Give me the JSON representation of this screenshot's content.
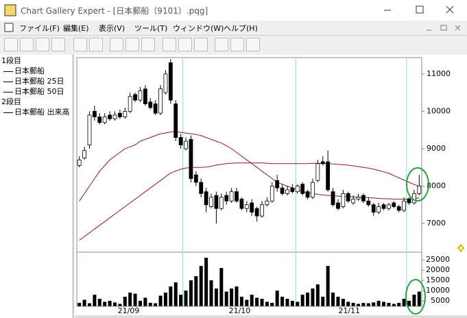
{
  "window": {
    "title": "Chart Gallery Expert - [日本郵船（9101）.pqg]"
  },
  "menu": [
    "ファイル(F)",
    "編集(E)",
    "表示(V)",
    "ツール(T)",
    "ウィンドウ(W)",
    "ヘルプ(H)"
  ],
  "chart_data": [
    {
      "type": "candlestick",
      "pane": "1段目",
      "name": "日本郵船",
      "open": [
        8550,
        8750,
        9100,
        10000,
        9850,
        9700,
        9900,
        9800,
        9950,
        9850,
        10000,
        10450,
        10300,
        10600,
        10250,
        10200,
        9950,
        10500,
        11300,
        10200,
        9300,
        9000,
        9250,
        8300,
        8100,
        7850,
        7450,
        7750,
        7400,
        7750,
        7600,
        7850,
        7650,
        7400,
        7550,
        7400,
        7200,
        7500,
        7600,
        8150,
        7950,
        7800,
        7950,
        7850,
        8050,
        7850,
        7700,
        8150,
        8650,
        8650,
        7850,
        7550,
        7450,
        7800,
        7550,
        7650,
        7750,
        7600,
        7500,
        7300,
        7500,
        7400,
        7550,
        7450,
        7350,
        7650,
        7550,
        7800
      ],
      "high": [
        8800,
        9050,
        10000,
        10150,
        9950,
        9950,
        10000,
        10000,
        10050,
        10100,
        10500,
        10500,
        10650,
        10700,
        10350,
        10300,
        10700,
        11100,
        11400,
        10300,
        9400,
        9300,
        9350,
        8400,
        8200,
        7950,
        7800,
        7850,
        7800,
        7850,
        7950,
        7950,
        7700,
        7600,
        7650,
        7450,
        7600,
        7700,
        8100,
        8300,
        8050,
        8000,
        8050,
        8050,
        8100,
        7900,
        8200,
        8700,
        8800,
        8950,
        7950,
        7650,
        7900,
        7850,
        7750,
        7800,
        7800,
        7700,
        7550,
        7550,
        7550,
        7550,
        7600,
        7500,
        7700,
        7700,
        7900,
        8300
      ],
      "low": [
        8500,
        8700,
        9000,
        9750,
        9650,
        9650,
        9750,
        9750,
        9800,
        9800,
        9950,
        10250,
        10250,
        10150,
        10050,
        9900,
        9900,
        10450,
        10200,
        9200,
        9000,
        8950,
        8100,
        8000,
        7700,
        7300,
        7400,
        7000,
        7350,
        7500,
        7550,
        7550,
        7350,
        7300,
        7200,
        7050,
        7150,
        7450,
        7550,
        7850,
        7750,
        7750,
        7800,
        7800,
        7750,
        7650,
        7650,
        8100,
        8550,
        7850,
        7450,
        7350,
        7400,
        7550,
        7500,
        7600,
        7550,
        7450,
        7200,
        7250,
        7350,
        7350,
        7400,
        7300,
        7300,
        7500,
        7500,
        7750
      ],
      "close": [
        8700,
        8950,
        9900,
        9850,
        9700,
        9850,
        9800,
        9900,
        9850,
        10000,
        10400,
        10300,
        10550,
        10200,
        10100,
        9950,
        10600,
        11000,
        10300,
        9300,
        9100,
        9200,
        8200,
        8100,
        7800,
        7500,
        7700,
        7400,
        7700,
        7600,
        7850,
        7600,
        7400,
        7500,
        7300,
        7200,
        7500,
        7600,
        8000,
        7950,
        7800,
        7900,
        7850,
        8000,
        7800,
        7700,
        8100,
        8600,
        8600,
        7900,
        7500,
        7400,
        7800,
        7600,
        7650,
        7700,
        7600,
        7500,
        7300,
        7450,
        7400,
        7500,
        7450,
        7350,
        7600,
        7550,
        7800,
        8000
      ],
      "series": [
        {
          "name": "日本郵船 25日",
          "color": "#8b1a1a",
          "values": [
            7600,
            7800,
            8000,
            8200,
            8400,
            8550,
            8700,
            8800,
            8900,
            9000,
            9050,
            9100,
            9200,
            9250,
            9300,
            9350,
            9400,
            9420,
            9450,
            9450,
            9440,
            9420,
            9400,
            9380,
            9350,
            9300,
            9250,
            9200,
            9150,
            9080,
            9000,
            8900,
            8800,
            8700,
            8600,
            8500,
            8400,
            8300,
            8200,
            8100,
            8050,
            8000,
            7950,
            7900,
            7850,
            7820,
            7800,
            7780,
            7760,
            7750,
            7740,
            7730,
            7720,
            7720,
            7710,
            7700,
            7700,
            7690,
            7680,
            7670,
            7660,
            7660,
            7650,
            7650,
            7650,
            7660,
            7670,
            7680
          ]
        },
        {
          "name": "日本郵船 50日",
          "color": "#8b1a1a",
          "values": [
            6550,
            6650,
            6750,
            6850,
            6950,
            7050,
            7150,
            7250,
            7350,
            7450,
            7550,
            7650,
            7750,
            7850,
            7950,
            8050,
            8150,
            8250,
            8350,
            8400,
            8450,
            8480,
            8500,
            8500,
            8500,
            8510,
            8530,
            8560,
            8580,
            8600,
            8610,
            8620,
            8620,
            8620,
            8620,
            8620,
            8620,
            8610,
            8600,
            8600,
            8600,
            8600,
            8600,
            8600,
            8600,
            8600,
            8610,
            8610,
            8600,
            8600,
            8590,
            8580,
            8570,
            8560,
            8540,
            8520,
            8500,
            8480,
            8450,
            8420,
            8380,
            8340,
            8280,
            8220,
            8160,
            8100,
            8040,
            7990
          ]
        }
      ],
      "xlim": [
        -0.5,
        67.5
      ],
      "xticks": [
        {
          "value": 9.7,
          "label": "21/09"
        },
        {
          "value": 31.6,
          "label": "21/10"
        },
        {
          "value": 53.2,
          "label": "21/11"
        }
      ],
      "xgrid": [
        20.4,
        42.7,
        64.5
      ],
      "ylim": [
        6230,
        11420
      ],
      "yticks": [
        7000,
        8000,
        9000,
        10000,
        11000
      ]
    },
    {
      "type": "bar",
      "pane": "2段目",
      "name": "日本郵船 出来高",
      "color": "#000000",
      "values": [
        4000,
        5500,
        3800,
        8000,
        6000,
        4500,
        5000,
        4200,
        3500,
        7000,
        9000,
        8500,
        5000,
        6500,
        4000,
        3800,
        7500,
        9000,
        12000,
        14000,
        8000,
        10000,
        15000,
        17000,
        22000,
        26000,
        15000,
        11000,
        21000,
        9500,
        11000,
        12000,
        7000,
        5500,
        8000,
        6500,
        6000,
        4500,
        4000,
        10000,
        7000,
        6000,
        5000,
        4500,
        8000,
        9000,
        11000,
        13000,
        7000,
        22000,
        9000,
        7000,
        6000,
        4500,
        4000,
        3500,
        4000,
        3800,
        4200,
        5000,
        4500,
        4000,
        3500,
        4000,
        6000,
        5000,
        8000,
        9500
      ],
      "xlim": [
        -0.5,
        67.5
      ],
      "xgrid": [
        20.4,
        42.7,
        64.5
      ],
      "ylim": [
        2300,
        28700
      ],
      "yticks": [
        5000,
        10000,
        15000,
        20000,
        25000
      ]
    }
  ]
}
